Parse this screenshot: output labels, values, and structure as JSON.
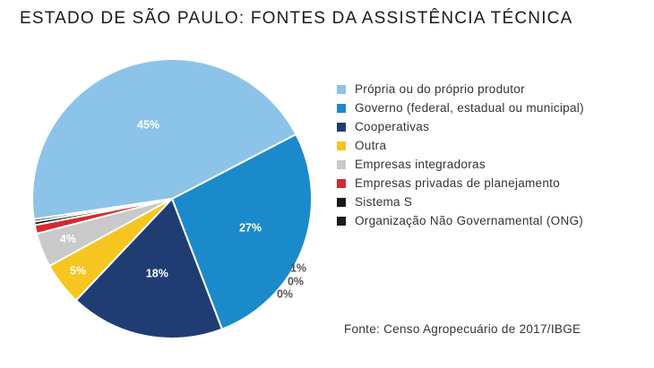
{
  "chart_data": {
    "type": "pie",
    "title": "ESTADO DE SÃO PAULO: FONTES DA ASSISTÊNCIA TÉCNICA",
    "slices": [
      {
        "label": "Própria ou do próprio produtor",
        "value": 45,
        "display": "45%",
        "color": "#8cc3e8"
      },
      {
        "label": "Governo (federal, estadual ou municipal)",
        "value": 27,
        "display": "27%",
        "color": "#1b8acb"
      },
      {
        "label": "Cooperativas",
        "value": 18,
        "display": "18%",
        "color": "#1f3d73"
      },
      {
        "label": "Outra",
        "value": 5,
        "display": "5%",
        "color": "#f6c51f"
      },
      {
        "label": "Empresas integradoras",
        "value": 4,
        "display": "4%",
        "color": "#c9c9c9"
      },
      {
        "label": "Empresas privadas de planejamento",
        "value": 1,
        "display": "1%",
        "color": "#d42a2f"
      },
      {
        "label": "Sistema S",
        "value": 0.4,
        "display": "0%",
        "color": "#1a1a1a"
      },
      {
        "label": "Organização Não Governamental (ONG)",
        "value": 0.3,
        "display": "0%",
        "color": "#1a1a1a"
      }
    ],
    "legend_position": "right",
    "source": "Fonte: Censo Agropecuário de 2017/IBGE"
  }
}
